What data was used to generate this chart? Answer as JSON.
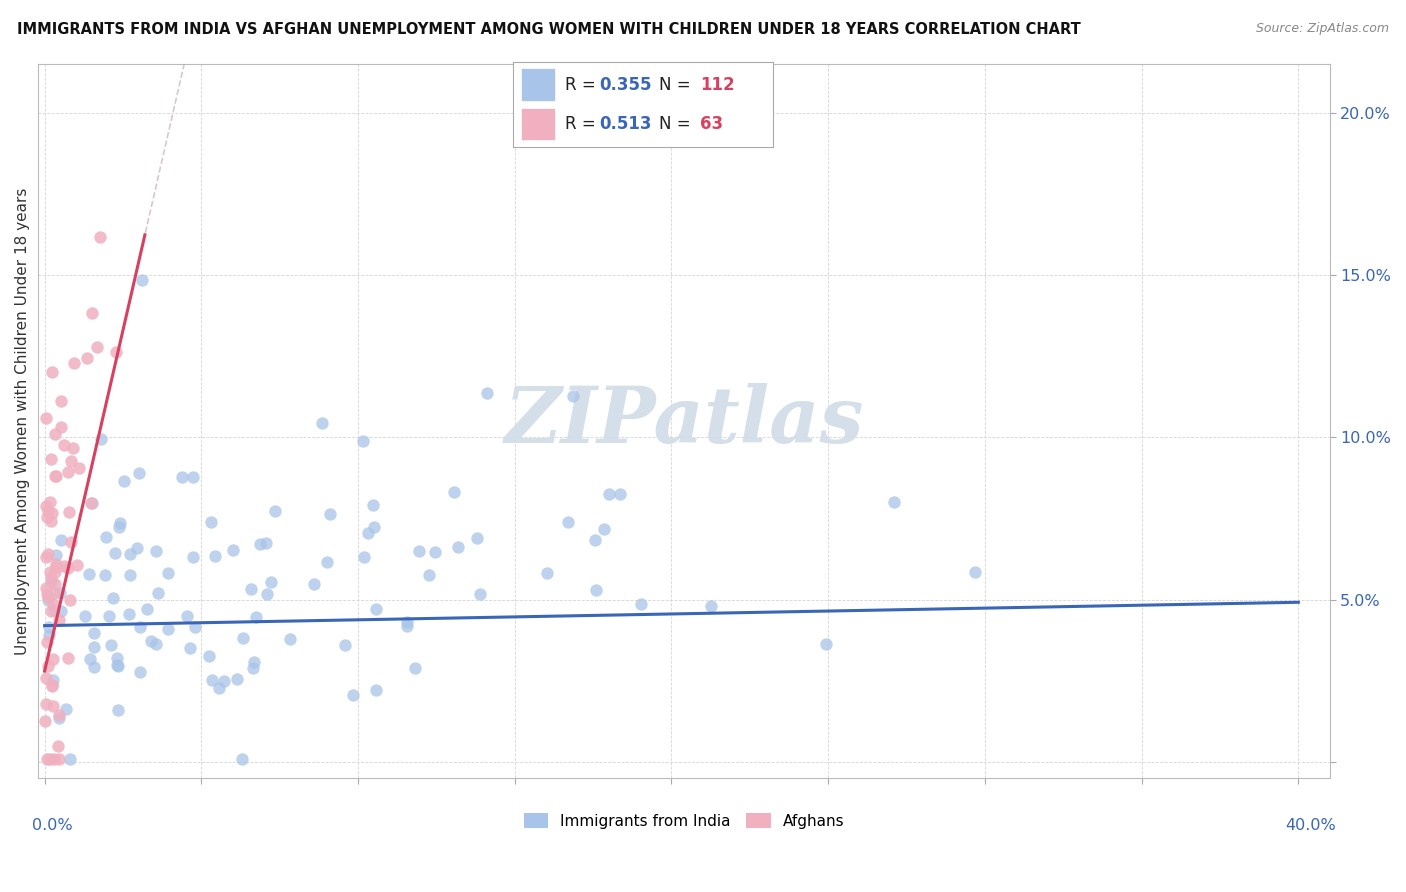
{
  "title": "IMMIGRANTS FROM INDIA VS AFGHAN UNEMPLOYMENT AMONG WOMEN WITH CHILDREN UNDER 18 YEARS CORRELATION CHART",
  "source": "Source: ZipAtlas.com",
  "ylabel": "Unemployment Among Women with Children Under 18 years",
  "ylim": [
    -0.005,
    0.215
  ],
  "xlim": [
    -0.002,
    0.41
  ],
  "yticks": [
    0.0,
    0.05,
    0.1,
    0.15,
    0.2
  ],
  "ytick_labels": [
    "",
    "5.0%",
    "10.0%",
    "15.0%",
    "20.0%"
  ],
  "xtick_label_left": "0.0%",
  "xtick_label_right": "40.0%",
  "series1_name": "Immigrants from India",
  "series1_color": "#a8c4e8",
  "series1_R": 0.355,
  "series1_N": 112,
  "series1_line_color": "#3a66b8",
  "series2_name": "Afghans",
  "series2_color": "#f0b0c0",
  "series2_line_color": "#d84060",
  "series2_R": 0.513,
  "series2_N": 63,
  "legend_R_color": "#3a66b8",
  "legend_N_color": "#d84060",
  "watermark_color": "#d0dce8",
  "background_color": "#ffffff",
  "india_intercept": 0.042,
  "india_slope": 0.018,
  "afghan_intercept": 0.028,
  "afghan_slope": 4.2
}
